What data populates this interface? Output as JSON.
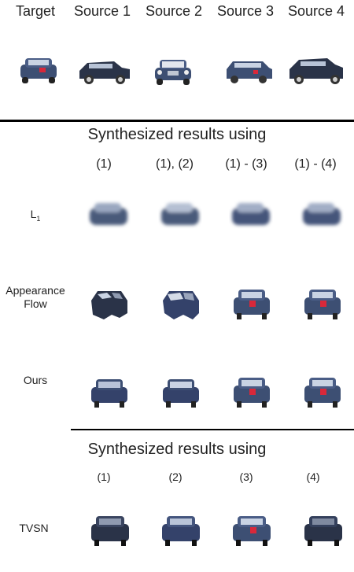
{
  "header": {
    "target": "Target",
    "source1": "Source 1",
    "source2": "Source 2",
    "source3": "Source 3",
    "source4": "Source 4"
  },
  "section1": {
    "title": "Synthesized results using",
    "cols": [
      "(1)",
      "(1), (2)",
      "(1) - (3)",
      "(1) - (4)"
    ],
    "rows": {
      "l1_main": "L",
      "l1_sub": "1",
      "appearance_flow": "Appearance Flow",
      "appearance_line1": "Appearance",
      "appearance_line2": "Flow",
      "ours": "Ours"
    }
  },
  "section2": {
    "title": "Synthesized results using",
    "cols": [
      "(1)",
      "(2)",
      "(3)",
      "(4)"
    ],
    "rows": {
      "tvsn": "TVSN"
    }
  },
  "colors": {
    "car_blue": "#3d4f73",
    "car_dark": "#2a3348",
    "tail_light": "#d8283a",
    "blur_blue": "#5a6b8a"
  }
}
